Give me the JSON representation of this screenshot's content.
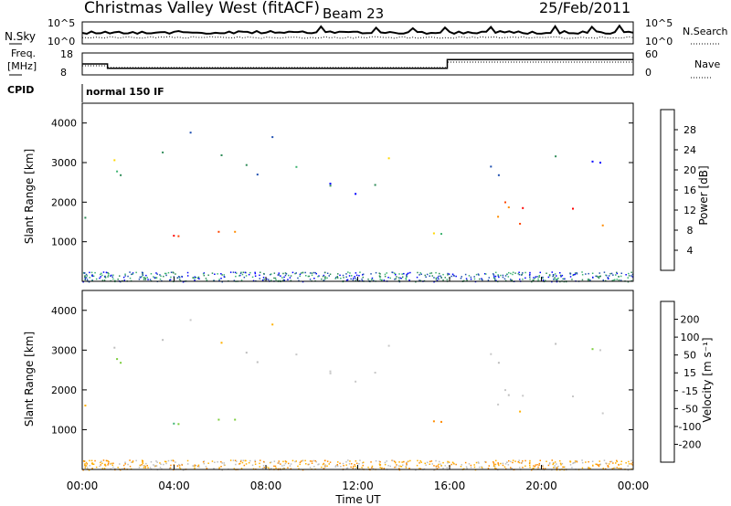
{
  "header": {
    "title": "Christmas Valley West (fitACF)",
    "beam": "Beam 23",
    "date": "25/Feb/2011"
  },
  "noise_panel": {
    "left_label": "N.Sky",
    "right_label": "N.Search",
    "left_ticks": [
      "10^5",
      "10^0"
    ],
    "right_ticks": [
      "10^5",
      "10^0"
    ]
  },
  "freq_panel": {
    "left_label_1": "Freq.",
    "left_label_2": "[MHz]",
    "right_label": "Nave",
    "left_ticks": [
      "18",
      "8"
    ],
    "right_ticks": [
      "60",
      "0"
    ]
  },
  "cpid": {
    "label": "CPID",
    "value": "normal 150 IF"
  },
  "colors": {
    "power_scale": [
      "#0000ff",
      "#1f4fb0",
      "#2e8b57",
      "#3cb371",
      "#ffd700",
      "#ff8c00",
      "#ff4500",
      "#ff0000"
    ],
    "velocity_scale": [
      "#ff0000",
      "#ff4500",
      "#ff8c00",
      "#ffb000",
      "#bdbdbd",
      "#c8c8c8",
      "#7ccd3c",
      "#3cb371",
      "#1f3fa0",
      "#0000ff"
    ]
  },
  "chart_data": [
    {
      "type": "heatmap",
      "name": "power",
      "ylabel": "Slant Range [km]",
      "ylim": [
        0,
        4500
      ],
      "yticks": [
        "1000",
        "2000",
        "3000",
        "4000"
      ],
      "colorbar_label": "Power [dB]",
      "colorbar_ticks": [
        "28",
        "24",
        "20",
        "16",
        "12",
        "8",
        "4"
      ],
      "clim": [
        0,
        32
      ],
      "xlim_hours": [
        0,
        24
      ]
    },
    {
      "type": "heatmap",
      "name": "velocity",
      "ylabel": "Slant Range [km]",
      "ylim": [
        0,
        4500
      ],
      "yticks": [
        "1000",
        "2000",
        "3000",
        "4000"
      ],
      "colorbar_label": "Velocity [m s⁻¹]",
      "colorbar_ticks": [
        "200",
        "100",
        "50",
        "15",
        "-15",
        "-50",
        "-100",
        "-200"
      ],
      "xlabel": "Time UT",
      "xticks": [
        "00:00",
        "04:00",
        "08:00",
        "12:00",
        "16:00",
        "20:00",
        "00:00"
      ],
      "xlim_hours": [
        0,
        24
      ]
    }
  ],
  "scatter_regions": [
    {
      "t0": 0.0,
      "t1": 1.2,
      "r0": 1450,
      "r1": 2100,
      "level": 0.45,
      "vel": 0.45
    },
    {
      "t0": 1.0,
      "t1": 4.5,
      "r0": 2600,
      "r1": 3600,
      "level": 0.4,
      "vel": 0.55
    },
    {
      "t0": 4.5,
      "t1": 8.5,
      "r0": 2700,
      "r1": 3900,
      "level": 0.35,
      "vel": 0.5
    },
    {
      "t0": 8.5,
      "t1": 12.0,
      "r0": 1900,
      "r1": 3000,
      "level": 0.3,
      "vel": 0.55
    },
    {
      "t0": 12.0,
      "t1": 13.5,
      "r0": 2300,
      "r1": 3400,
      "level": 0.35,
      "vel": 0.55
    },
    {
      "t0": 1.8,
      "t1": 6.8,
      "r0": 600,
      "r1": 1300,
      "level": 0.85,
      "vel": 0.65
    },
    {
      "t0": 13.5,
      "t1": 16.0,
      "r0": 1000,
      "r1": 1800,
      "level": 0.6,
      "vel": 0.3
    },
    {
      "t0": 16.0,
      "t1": 24.0,
      "r0": 1300,
      "r1": 2100,
      "level": 0.9,
      "vel": 0.45
    },
    {
      "t0": 17.0,
      "t1": 24.0,
      "r0": 2700,
      "r1": 3300,
      "level": 0.2,
      "vel": 0.5
    }
  ]
}
